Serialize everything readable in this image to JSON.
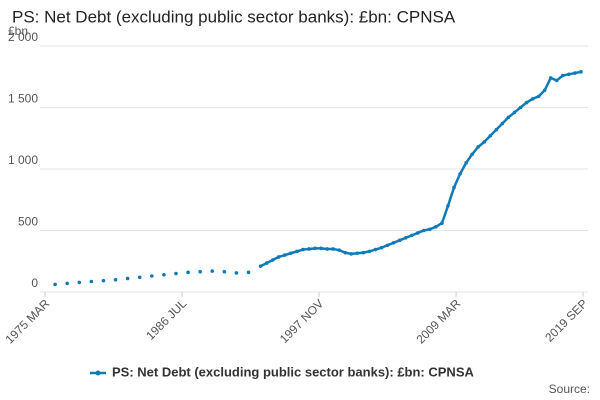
{
  "chart_data": {
    "type": "line",
    "title": "PS: Net Debt (excluding public sector banks): £bn: CPNSA",
    "y_label": "£bn",
    "source": "Source:",
    "series": [
      {
        "name": "PS: Net Debt (excluding public sector banks): £bn: CPNSA",
        "color": "#0e7bb9",
        "x": [
          1976,
          1977,
          1978,
          1979,
          1980,
          1981,
          1982,
          1983,
          1984,
          1985,
          1986,
          1987,
          1988,
          1989,
          1990,
          1991,
          1992,
          1993,
          1993.5,
          1994,
          1994.5,
          1995,
          1995.5,
          1996,
          1996.5,
          1997,
          1997.5,
          1998,
          1998.5,
          1999,
          1999.5,
          2000,
          2000.5,
          2001,
          2001.5,
          2002,
          2002.5,
          2003,
          2003.5,
          2004,
          2004.5,
          2005,
          2005.5,
          2006,
          2006.5,
          2007,
          2007.5,
          2008,
          2008.5,
          2009,
          2009.5,
          2010,
          2010.5,
          2011,
          2011.5,
          2012,
          2012.5,
          2013,
          2013.5,
          2014,
          2014.5,
          2015,
          2015.5,
          2016,
          2016.5,
          2017,
          2017.5,
          2018,
          2018.5,
          2019,
          2019.5
        ],
        "values": [
          62,
          70,
          78,
          85,
          92,
          100,
          110,
          120,
          130,
          140,
          150,
          160,
          165,
          170,
          165,
          155,
          160,
          210,
          235,
          260,
          285,
          300,
          315,
          330,
          345,
          350,
          355,
          355,
          350,
          350,
          340,
          320,
          310,
          315,
          320,
          330,
          345,
          360,
          380,
          400,
          420,
          440,
          460,
          480,
          500,
          510,
          530,
          560,
          700,
          850,
          960,
          1050,
          1120,
          1180,
          1220,
          1270,
          1320,
          1370,
          1420,
          1460,
          1500,
          1540,
          1570,
          1590,
          1640,
          1740,
          1720,
          1760,
          1770,
          1780,
          1790
        ]
      }
    ],
    "xlim": [
      1974.75,
      2019.67
    ],
    "xticks": [
      {
        "value": 1975.17,
        "label": "1975 MAR"
      },
      {
        "value": 1986.5,
        "label": "1986 JUL"
      },
      {
        "value": 1997.83,
        "label": "1997 NOV"
      },
      {
        "value": 2009.17,
        "label": "2009 MAR"
      },
      {
        "value": 2019.67,
        "label": "2019 SEP"
      }
    ],
    "ylim": [
      0,
      2000
    ],
    "yticks": [
      0,
      500,
      {
        "value": 1000,
        "label": "1 000"
      },
      {
        "value": 1500,
        "label": "1 500"
      },
      {
        "value": 2000,
        "label": "2 000"
      }
    ],
    "grid": true
  }
}
